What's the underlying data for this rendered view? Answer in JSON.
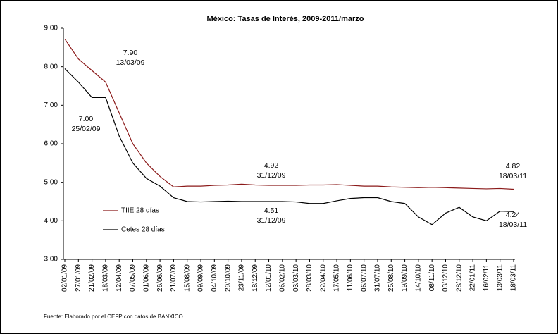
{
  "chart_data": {
    "type": "line",
    "title": "México: Tasas de Interés, 2009-2011/marzo",
    "categories": [
      "02/01/09",
      "27/01/09",
      "21/02/09",
      "18/03/09",
      "12/04/09",
      "07/05/09",
      "01/06/09",
      "26/06/09",
      "21/07/09",
      "15/08/09",
      "09/09/09",
      "04/10/09",
      "29/10/09",
      "23/11/09",
      "18/12/09",
      "12/01/10",
      "06/02/10",
      "03/03/10",
      "28/03/10",
      "22/04/10",
      "17/05/10",
      "11/06/10",
      "06/07/10",
      "31/07/10",
      "25/08/10",
      "19/09/10",
      "14/10/10",
      "08/11/10",
      "03/12/10",
      "28/12/10",
      "22/01/11",
      "16/02/11",
      "13/03/11",
      "18/03/11"
    ],
    "series": [
      {
        "name": "TIIE 28 días",
        "color": "#8b1a1a",
        "values": [
          8.72,
          8.2,
          7.9,
          7.6,
          6.8,
          6.0,
          5.5,
          5.15,
          4.88,
          4.9,
          4.9,
          4.92,
          4.93,
          4.95,
          4.93,
          4.92,
          4.92,
          4.92,
          4.93,
          4.93,
          4.94,
          4.92,
          4.9,
          4.9,
          4.88,
          4.87,
          4.86,
          4.87,
          4.86,
          4.85,
          4.84,
          4.83,
          4.84,
          4.82
        ]
      },
      {
        "name": "Cetes 28 días",
        "color": "#000000",
        "values": [
          7.95,
          7.6,
          7.2,
          7.2,
          6.2,
          5.5,
          5.1,
          4.9,
          4.6,
          4.5,
          4.49,
          4.5,
          4.51,
          4.5,
          4.5,
          4.5,
          4.5,
          4.49,
          4.45,
          4.45,
          4.52,
          4.58,
          4.6,
          4.6,
          4.5,
          4.45,
          4.1,
          3.9,
          4.2,
          4.35,
          4.1,
          4.0,
          4.25,
          4.24
        ]
      }
    ],
    "ylim": [
      3,
      9
    ],
    "yticks": [
      {
        "value": 3,
        "label": "3.00"
      },
      {
        "value": 4,
        "label": "4.00"
      },
      {
        "value": 5,
        "label": "5.00"
      },
      {
        "value": 6,
        "label": "6.00"
      },
      {
        "value": 7,
        "label": "7.00"
      },
      {
        "value": 8,
        "label": "8.00"
      },
      {
        "value": 9,
        "label": "9.00"
      }
    ],
    "annotations": [
      {
        "text": "7.90",
        "date": "13/03/09"
      },
      {
        "text": "7.00",
        "date": "25/02/09"
      },
      {
        "text": "4.92",
        "date": "31/12/09"
      },
      {
        "text": "4.51",
        "date": "31/12/09"
      },
      {
        "text": "4.82",
        "date": "18/03/11"
      },
      {
        "text": "4.24",
        "date": "18/03/11"
      }
    ],
    "source": "Fuente: Elaborado por el CEFP con datos de BANXICO."
  }
}
